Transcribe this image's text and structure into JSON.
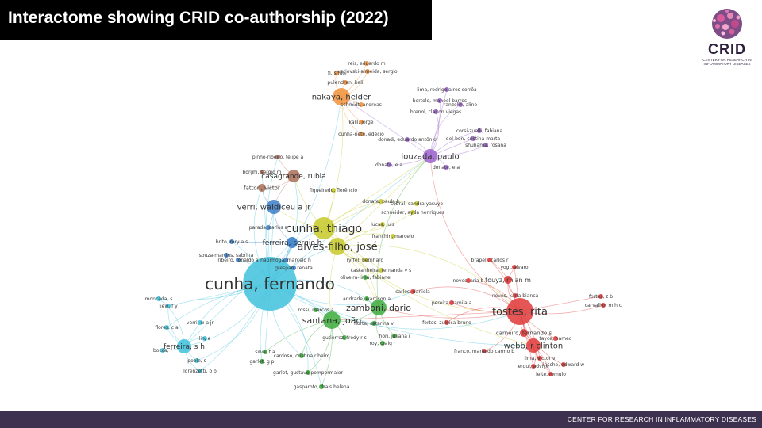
{
  "header": {
    "title": "Interactome showing CRID co-authorship (2022)"
  },
  "logo": {
    "word": "CRID",
    "subtitle_line1": "CENTER FOR RESEARCH IN",
    "subtitle_line2": "INFLAMMATORY DISEASES"
  },
  "footer": {
    "text": "CENTER FOR RESEARCH IN INFLAMMATORY DISEASES"
  },
  "colors": {
    "title_bg": "#000000",
    "footer_bg": "#3e304f",
    "red": "#e03a3a",
    "green": "#3cab3c",
    "blue": "#3b7fc9",
    "yellow": "#c7c928",
    "purple": "#9c63cf",
    "cyan": "#3fc2dc",
    "orange": "#f0913a",
    "brown": "#b07662"
  },
  "network": {
    "nodes": [
      {
        "id": "cunha_f",
        "label": "cunha, fernando",
        "cluster": "cyan",
        "size": "xl"
      },
      {
        "id": "cunha_t",
        "label": "cunha, thiago",
        "cluster": "yellow",
        "size": "l"
      },
      {
        "id": "alves_filho",
        "label": "alves-filho, josé",
        "cluster": "yellow",
        "size": "l"
      },
      {
        "id": "verri",
        "label": "verri, waldiceu a jr",
        "cluster": "blue",
        "size": "m"
      },
      {
        "id": "ferreira_sergio",
        "label": "ferreira, sergio h",
        "cluster": "blue",
        "size": "m"
      },
      {
        "id": "tostes",
        "label": "tostes, rita",
        "cluster": "red",
        "size": "l"
      },
      {
        "id": "webb",
        "label": "webb, r clinton",
        "cluster": "red",
        "size": "m"
      },
      {
        "id": "touyz",
        "label": "touyz, rhian m",
        "cluster": "red",
        "size": "s"
      },
      {
        "id": "carneiro",
        "label": "carneiro, fernando s",
        "cluster": "red",
        "size": "s"
      },
      {
        "id": "zamboni",
        "label": "zamboni, dario",
        "cluster": "green",
        "size": "l"
      },
      {
        "id": "santana",
        "label": "santana, joão",
        "cluster": "green",
        "size": "l"
      },
      {
        "id": "louzada",
        "label": "louzada, paulo",
        "cluster": "purple",
        "size": "m"
      },
      {
        "id": "nakaya",
        "label": "nakaya, helder",
        "cluster": "orange",
        "size": "m"
      },
      {
        "id": "casagrande",
        "label": "casagrande, rubia",
        "cluster": "brown",
        "size": "m"
      },
      {
        "id": "fattori",
        "label": "fattori, victor",
        "cluster": "brown",
        "size": "s"
      },
      {
        "id": "ferreira_sh",
        "label": "ferreira, s h",
        "cluster": "cyan",
        "size": "m"
      },
      {
        "id": "pinho",
        "label": "pinho-ribeiro, felipe a",
        "cluster": "brown",
        "size": "xs"
      },
      {
        "id": "borghi",
        "label": "borghi, sergio m",
        "cluster": "brown",
        "size": "xs"
      },
      {
        "id": "figueiredo",
        "label": "figueiredo, florêncio",
        "cluster": "yellow",
        "size": "xs"
      },
      {
        "id": "donate",
        "label": "donate, paula b",
        "cluster": "yellow",
        "size": "xs"
      },
      {
        "id": "sobral",
        "label": "sobral, sandra yasuyo",
        "cluster": "yellow",
        "size": "xs"
      },
      {
        "id": "schneider",
        "label": "schneider, ayda henriques",
        "cluster": "yellow",
        "size": "xs"
      },
      {
        "id": "lucas",
        "label": "lucas, luis",
        "cluster": "yellow",
        "size": "xs"
      },
      {
        "id": "franchin",
        "label": "franchin, marcelo",
        "cluster": "yellow",
        "size": "xs"
      },
      {
        "id": "ryffel",
        "label": "ryffel, bernhard",
        "cluster": "yellow",
        "size": "xs"
      },
      {
        "id": "castanheira",
        "label": "castanheira, fernanda v s",
        "cluster": "yellow",
        "size": "xs"
      },
      {
        "id": "oliveira_lima",
        "label": "oliveira-lima, fabiane",
        "cluster": "green",
        "size": "xs"
      },
      {
        "id": "parada",
        "label": "parada, carlos a",
        "cluster": "blue",
        "size": "xs"
      },
      {
        "id": "brito",
        "label": "brito, rory a s",
        "cluster": "blue",
        "size": "xs"
      },
      {
        "id": "souza_martins",
        "label": "souza-martins, sabrina",
        "cluster": "blue",
        "size": "xs"
      },
      {
        "id": "ribeiro_ronaldo",
        "label": "ribeiro, ronaldo a",
        "cluster": "blue",
        "size": "xs"
      },
      {
        "id": "napimoga",
        "label": "napimoga, marcelo h",
        "cluster": "blue",
        "size": "xs"
      },
      {
        "id": "grespan",
        "label": "grespan, renata",
        "cluster": "blue",
        "size": "xs"
      },
      {
        "id": "reis",
        "label": "reis, eduardo m",
        "cluster": "orange",
        "size": "xs"
      },
      {
        "id": "verjovski",
        "label": "verjovski-almeida, sergio",
        "cluster": "orange",
        "size": "xs"
      },
      {
        "id": "fi_shuo",
        "label": "fi, shuo",
        "cluster": "orange",
        "size": "xs"
      },
      {
        "id": "pulendran",
        "label": "pulendran, bali",
        "cluster": "orange",
        "size": "xs"
      },
      {
        "id": "schmidt",
        "label": "schmidt, andreas",
        "cluster": "orange",
        "size": "xs"
      },
      {
        "id": "kalil",
        "label": "kalil, jorge",
        "cluster": "orange",
        "size": "xs"
      },
      {
        "id": "cunha_neto",
        "label": "cunha-neto, edecio",
        "cluster": "orange",
        "size": "xs"
      },
      {
        "id": "lima_rodrigo",
        "label": "lima, rodrigo aires corrêa",
        "cluster": "purple",
        "size": "xs"
      },
      {
        "id": "bertolo",
        "label": "bertolo, manoel barros",
        "cluster": "purple",
        "size": "xs"
      },
      {
        "id": "brenol",
        "label": "brenol, claiton viegas",
        "cluster": "purple",
        "size": "xs"
      },
      {
        "id": "ranzolin",
        "label": "ranzolin, aline",
        "cluster": "purple",
        "size": "xs"
      },
      {
        "id": "corsi",
        "label": "corsi-zuelli, fabiana",
        "cluster": "purple",
        "size": "xs"
      },
      {
        "id": "del_ben",
        "label": "del-ben, cristina marta",
        "cluster": "purple",
        "size": "xs"
      },
      {
        "id": "shuhama",
        "label": "shuhama, rosana",
        "cluster": "purple",
        "size": "xs"
      },
      {
        "id": "donadi",
        "label": "donadi, eduardo antônio",
        "cluster": "purple",
        "size": "xs"
      },
      {
        "id": "donate_ea",
        "label": "donate, e a",
        "cluster": "purple",
        "size": "xs"
      },
      {
        "id": "donato_ea",
        "label": "donato, e a",
        "cluster": "purple",
        "size": "xs"
      },
      {
        "id": "brapeli",
        "label": "brapeli, carlos r",
        "cluster": "red",
        "size": "xs"
      },
      {
        "id": "yogi",
        "label": "yogi, alvaro",
        "cluster": "red",
        "size": "xs"
      },
      {
        "id": "neves_aria",
        "label": "neves, aria b",
        "cluster": "red",
        "size": "xs"
      },
      {
        "id": "neves_karla",
        "label": "neves, karla bianca",
        "cluster": "red",
        "size": "xs"
      },
      {
        "id": "pereira_camila",
        "label": "pereira, camila a",
        "cluster": "red",
        "size": "xs"
      },
      {
        "id": "fortes_zb",
        "label": "fortes, z b",
        "cluster": "red",
        "size": "xs"
      },
      {
        "id": "carvalho_mhc",
        "label": "carvalho, m h c",
        "cluster": "red",
        "size": "xs"
      },
      {
        "id": "fortes_zuleica",
        "label": "fortes, zuleica bruno",
        "cluster": "red",
        "size": "xs"
      },
      {
        "id": "franco",
        "label": "franco, maria do carmo b",
        "cluster": "red",
        "size": "xs"
      },
      {
        "id": "lima_victor",
        "label": "lima, victor v",
        "cluster": "red",
        "size": "xs"
      },
      {
        "id": "ergul",
        "label": "ergul, adviye",
        "cluster": "red",
        "size": "xs"
      },
      {
        "id": "leite",
        "label": "leite, romulo",
        "cluster": "red",
        "size": "xs"
      },
      {
        "id": "carlos_daniela",
        "label": "carlos, daniela",
        "cluster": "red",
        "size": "xs"
      },
      {
        "id": "tayce",
        "label": "tayce, hamed",
        "cluster": "red",
        "size": "xs"
      },
      {
        "id": "inscho",
        "label": "inscho, edward w",
        "cluster": "red",
        "size": "xs"
      },
      {
        "id": "andrade",
        "label": "andrade, warrison a",
        "cluster": "green",
        "size": "xs"
      },
      {
        "id": "rossi",
        "label": "rossi, marcos a",
        "cluster": "green",
        "size": "xs"
      },
      {
        "id": "horta",
        "label": "horta, catarina v",
        "cluster": "green",
        "size": "xs"
      },
      {
        "id": "hori",
        "label": "hori, juliana i",
        "cluster": "green",
        "size": "xs"
      },
      {
        "id": "gutierrez",
        "label": "gutierrez, fredy r s",
        "cluster": "green",
        "size": "xs"
      },
      {
        "id": "roy",
        "label": "roy, craig r",
        "cluster": "green",
        "size": "xs"
      },
      {
        "id": "silva_ta",
        "label": "silva, t a",
        "cluster": "green",
        "size": "xs"
      },
      {
        "id": "garlet_gp",
        "label": "garlet, g p",
        "cluster": "green",
        "size": "xs"
      },
      {
        "id": "cardoso",
        "label": "cardoso, cristina ribeiro",
        "cluster": "green",
        "size": "xs"
      },
      {
        "id": "garlet_gustavo",
        "label": "garlet, gustavo pompermaier",
        "cluster": "green",
        "size": "xs"
      },
      {
        "id": "gasparoto",
        "label": "gasparoto, thaís helena",
        "cluster": "green",
        "size": "xs"
      },
      {
        "id": "moncada",
        "label": "moncada, s",
        "cluster": "cyan",
        "size": "xs"
      },
      {
        "id": "liew",
        "label": "liew, f y",
        "cluster": "cyan",
        "size": "xs"
      },
      {
        "id": "flores",
        "label": "flores, c a",
        "cluster": "cyan",
        "size": "xs"
      },
      {
        "id": "verri_wajr",
        "label": "verri, w a jr",
        "cluster": "cyan",
        "size": "xs"
      },
      {
        "id": "poole",
        "label": "poole, s",
        "cluster": "cyan",
        "size": "xs"
      },
      {
        "id": "lorenzetti",
        "label": "lorenzetti, b b",
        "cluster": "cyan",
        "size": "xs"
      },
      {
        "id": "lin",
        "label": "lin, e",
        "cluster": "cyan",
        "size": "xs"
      },
      {
        "id": "bocca",
        "label": "bocca, r",
        "cluster": "cyan",
        "size": "xs"
      }
    ]
  }
}
